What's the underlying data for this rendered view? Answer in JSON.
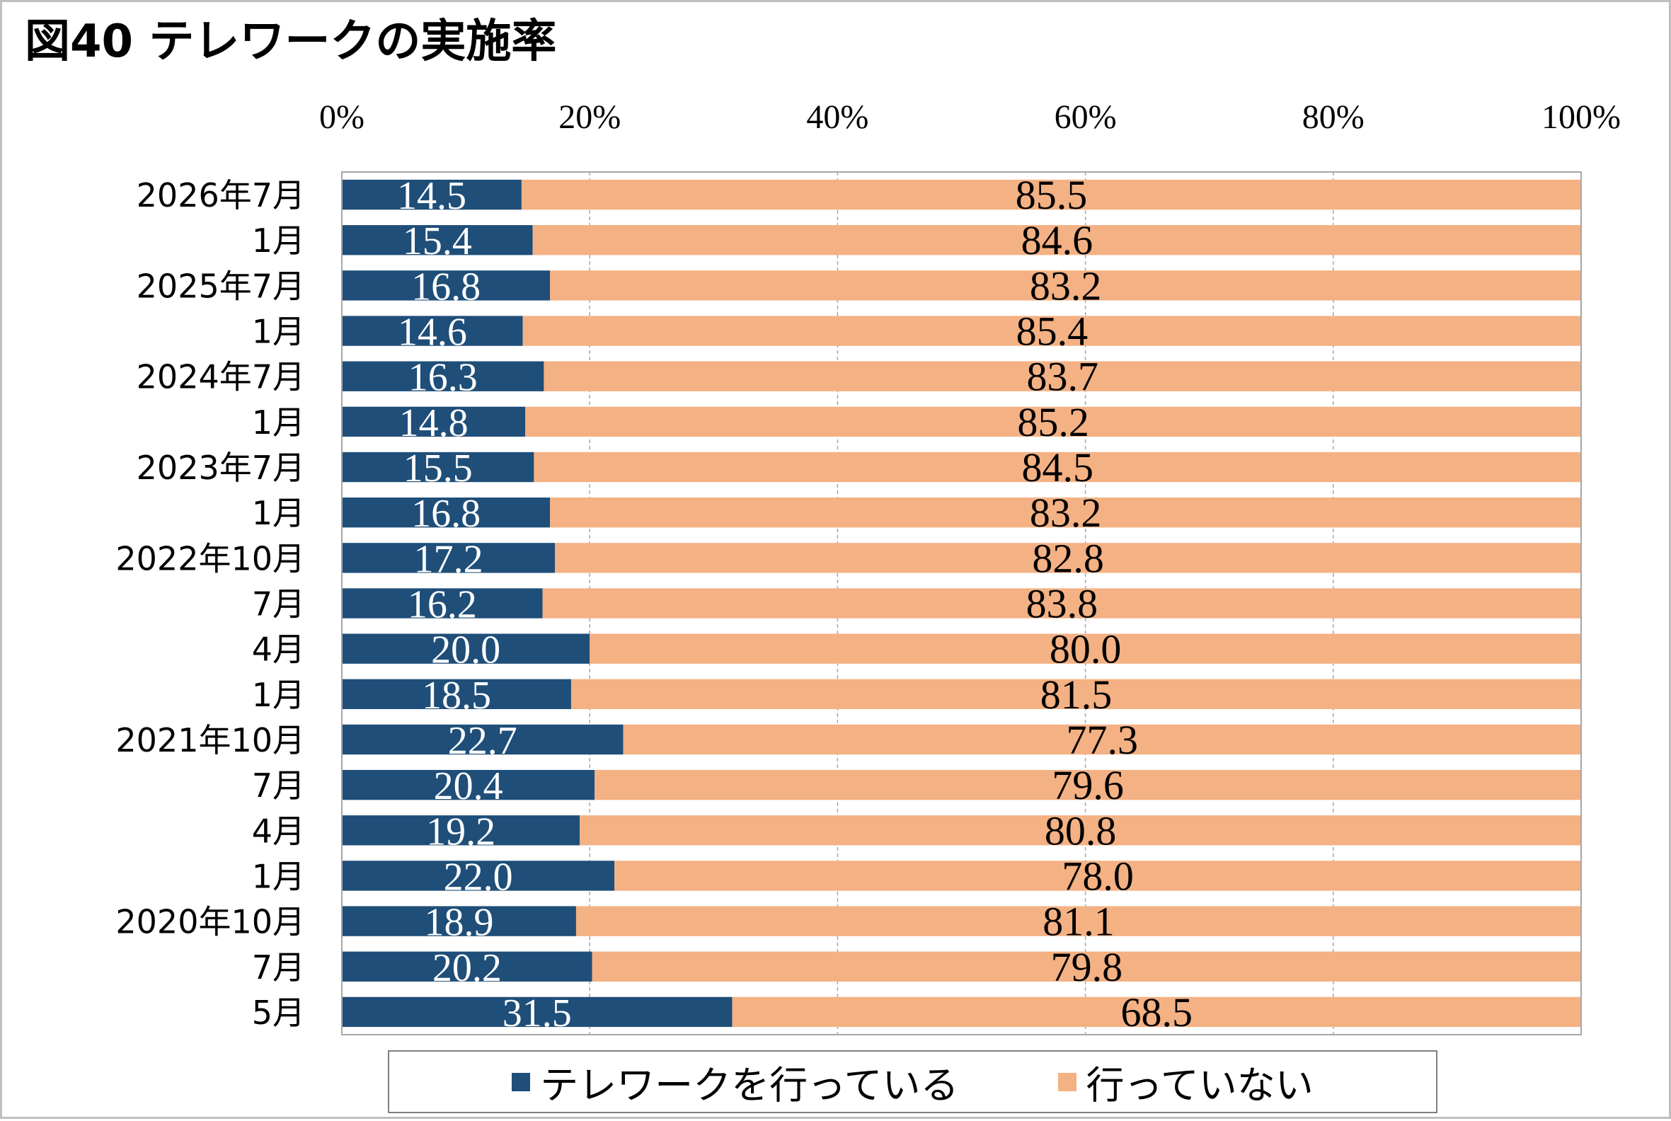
{
  "chart_data": {
    "type": "bar",
    "orientation": "horizontal",
    "stacked": "percent",
    "title": "図40 テレワークの実施率",
    "categories": [
      "2026年7月",
      "1月",
      "2025年7月",
      "1月",
      "2024年7月",
      "1月",
      "2023年7月",
      "1月",
      "2022年10月",
      "7月",
      "4月",
      "1月",
      "2021年10月",
      "7月",
      "4月",
      "1月",
      "2020年10月",
      "7月",
      "5月"
    ],
    "series": [
      {
        "name": "テレワークを行っている",
        "color": "#1f4e79",
        "label_color": "#ffffff",
        "values": [
          14.5,
          15.4,
          16.8,
          14.6,
          16.3,
          14.8,
          15.5,
          16.8,
          17.2,
          16.2,
          20.0,
          18.5,
          22.7,
          20.4,
          19.2,
          22.0,
          18.9,
          20.2,
          31.5
        ],
        "labels": [
          "14.5",
          "15.4",
          "16.8",
          "14.6",
          "16.3",
          "14.8",
          "15.5",
          "16.8",
          "17.2",
          "16.2",
          "20.0",
          "18.5",
          "22.7",
          "20.4",
          "19.2",
          "22.0",
          "18.9",
          "20.2",
          "31.5"
        ]
      },
      {
        "name": "行っていない",
        "color": "#f4b183",
        "label_color": "#000000",
        "values": [
          85.5,
          84.6,
          83.2,
          85.4,
          83.7,
          85.2,
          84.5,
          83.2,
          82.8,
          83.8,
          80.0,
          81.5,
          77.3,
          79.6,
          80.8,
          78.0,
          81.1,
          79.8,
          68.5
        ],
        "labels": [
          "85.5",
          "84.6",
          "83.2",
          "85.4",
          "83.7",
          "85.2",
          "84.5",
          "83.2",
          "82.8",
          "83.8",
          "80.0",
          "81.5",
          "77.3",
          "79.6",
          "80.8",
          "78.0",
          "81.1",
          "79.8",
          "68.5"
        ]
      }
    ],
    "x_ticks": [
      "0%",
      "20%",
      "40%",
      "60%",
      "80%",
      "100%"
    ],
    "xlim": [
      0,
      100
    ],
    "x_axis_position": "top",
    "grid": "vertical-dashed",
    "legend": "bottom"
  }
}
